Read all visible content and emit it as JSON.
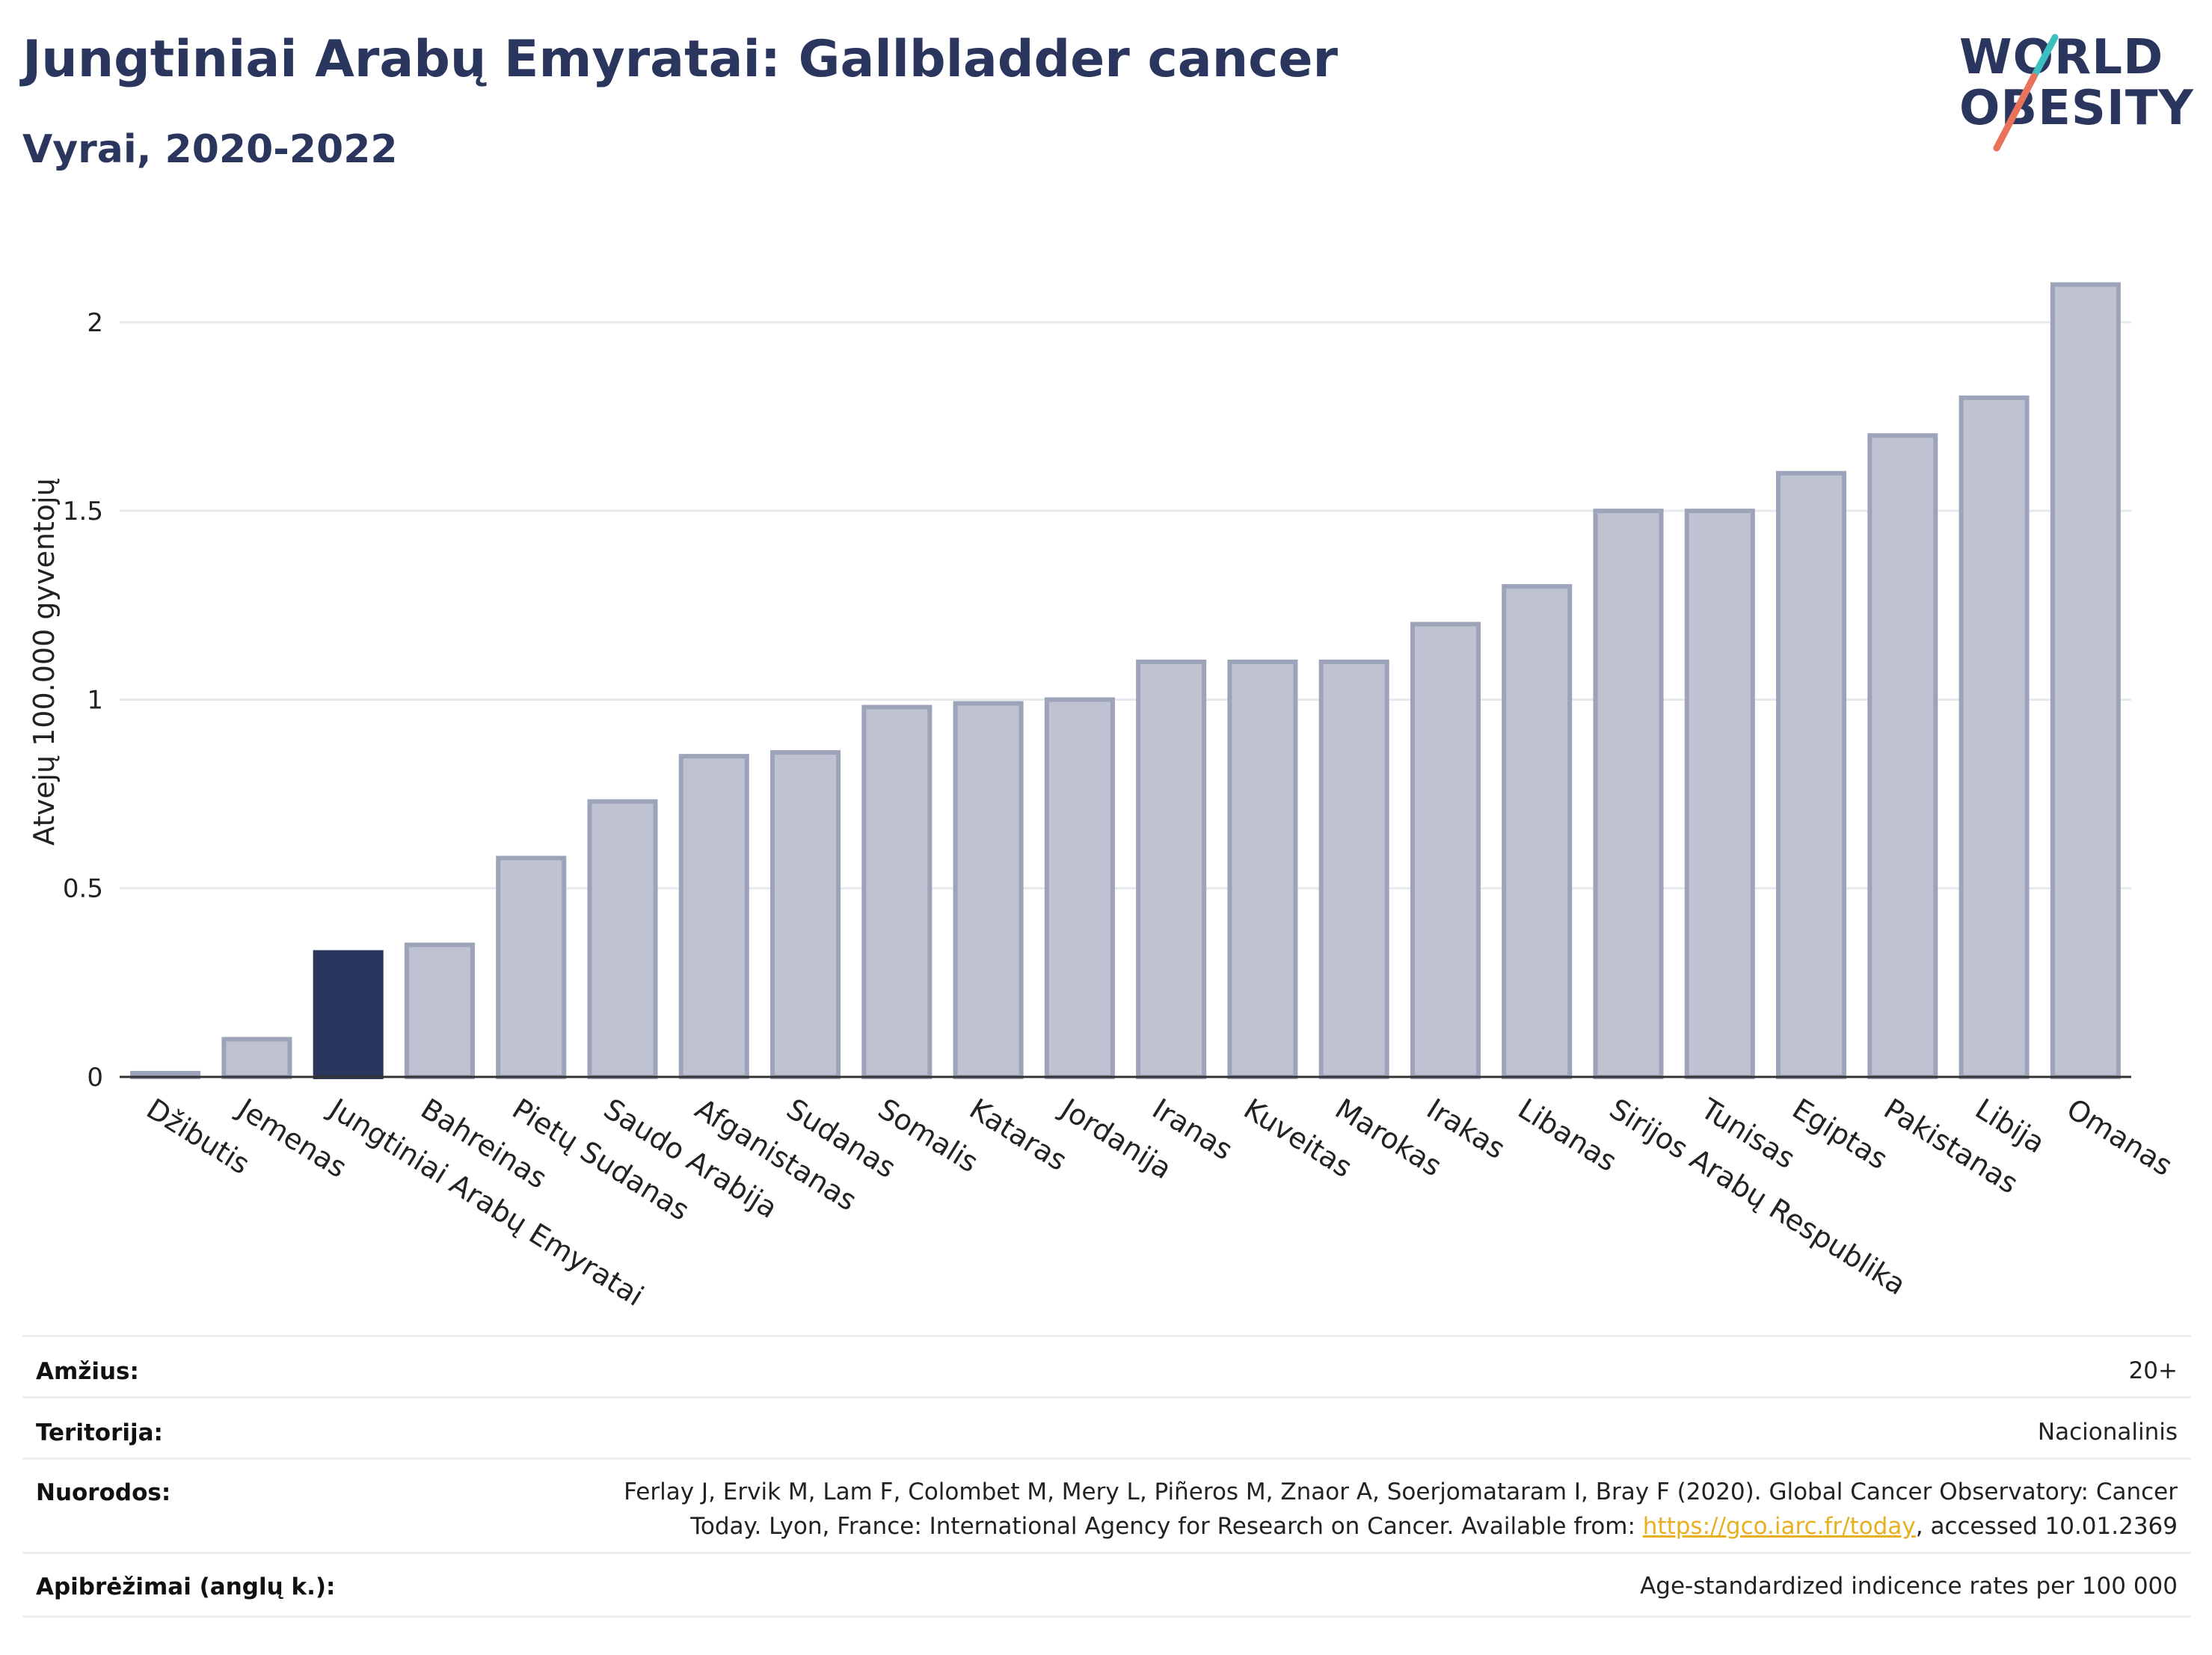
{
  "header": {
    "title": "Jungtiniai Arabų Emyratai: Gallbladder cancer",
    "subtitle": "Vyrai, 2020-2022"
  },
  "logo": {
    "line1": "WORLD",
    "line2": "OBESITY"
  },
  "colors": {
    "highlight": "#2b365e",
    "bar_fill": "#bfc3d1",
    "bar_stroke": "#9da3b8",
    "accent_teal": "#3dbfbf",
    "accent_coral": "#e8735a",
    "link": "#e8b020"
  },
  "chart_data": {
    "type": "bar",
    "ylabel": "Atvejų 100.000 gyventojų",
    "ylim": [
      0,
      2.2
    ],
    "yticks": [
      0,
      0.5,
      1,
      1.5,
      2
    ],
    "ytick_labels": [
      "0",
      "0.5",
      "1",
      "1.5",
      "2"
    ],
    "highlight": "Jungtiniai Arabų Emyratai",
    "categories": [
      "Džibutis",
      "Jemenas",
      "Jungtiniai Arabų Emyratai",
      "Bahreinas",
      "Pietų Sudanas",
      "Saudo Arabija",
      "Afganistanas",
      "Sudanas",
      "Somalis",
      "Kataras",
      "Jordanija",
      "Iranas",
      "Kuveitas",
      "Marokas",
      "Irakas",
      "Libanas",
      "Sirijos Arabų Respublika",
      "Tunisas",
      "Egiptas",
      "Pakistanas",
      "Libija",
      "Omanas"
    ],
    "values": [
      0.01,
      0.1,
      0.33,
      0.35,
      0.58,
      0.73,
      0.85,
      0.86,
      0.98,
      0.99,
      1.0,
      1.1,
      1.1,
      1.1,
      1.2,
      1.3,
      1.5,
      1.5,
      1.6,
      1.7,
      1.8,
      2.1
    ],
    "grid": true
  },
  "info": {
    "rows": [
      {
        "key": "Amžius:",
        "value": "20+"
      },
      {
        "key": "Teritorija:",
        "value": "Nacionalinis"
      },
      {
        "key": "Nuorodos:",
        "value_line1": "Ferlay J, Ervik M, Lam F, Colombet M, Mery L, Piñeros M, Znaor A, Soerjomataram I, Bray F (2020). Global Cancer Observatory: Cancer",
        "value_line2_pre": "Today. Lyon, France: International Agency for Research on Cancer. Available from: ",
        "link": "https://gco.iarc.fr/today",
        "value_line2_post": ", accessed 10.01.2369"
      },
      {
        "key": "Apibrėžimai (anglų k.):",
        "value": "Age-standardized indicence rates per 100 000"
      }
    ]
  }
}
